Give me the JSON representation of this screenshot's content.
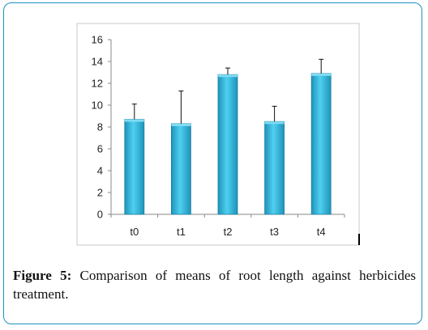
{
  "figure": {
    "label": "Figure 5:",
    "caption": " Comparison of means of root length against herbicides treatment."
  },
  "chart_data": {
    "type": "bar",
    "categories": [
      "t0",
      "t1",
      "t2",
      "t3",
      "t4"
    ],
    "values": [
      8.7,
      8.3,
      12.8,
      8.5,
      12.9
    ],
    "error_upper": [
      1.4,
      3.0,
      0.6,
      1.4,
      1.3
    ],
    "ylim": [
      0,
      16
    ],
    "yticks": [
      0,
      2,
      4,
      6,
      8,
      10,
      12,
      14,
      16
    ],
    "title": "",
    "xlabel": "",
    "ylabel": "",
    "grid": false,
    "legend": "none",
    "bar_color": "#36b8dc"
  }
}
